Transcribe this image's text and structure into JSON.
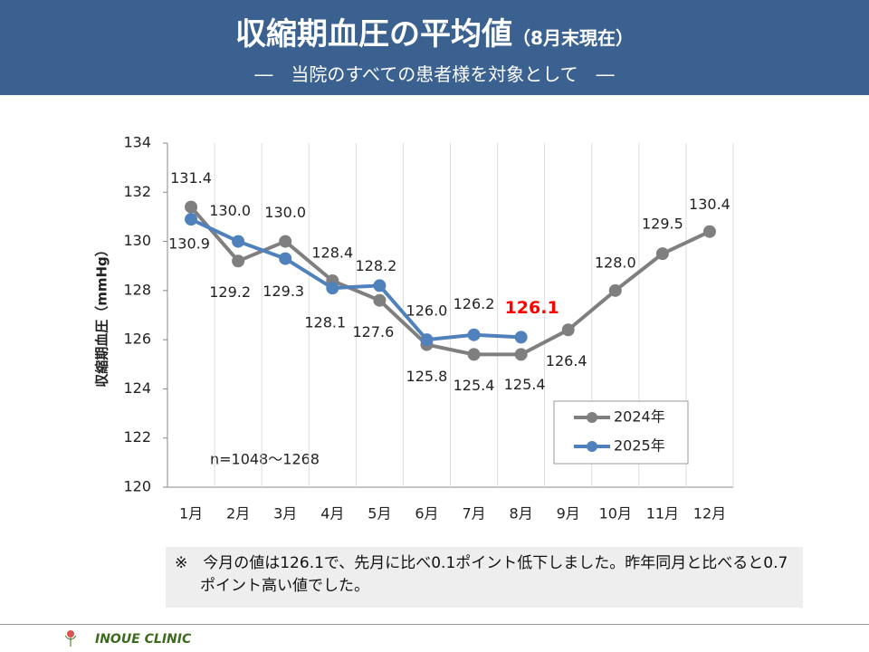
{
  "header": {
    "title": "収縮期血圧の平均値",
    "title_suffix": "（8月末現在）",
    "subtitle": "―　当院のすべての患者様を対象として　―"
  },
  "chart_data": {
    "type": "line",
    "ylabel": "収縮期血圧（mmHg）",
    "annotation": "n=1048～1268",
    "categories": [
      "1月",
      "2月",
      "3月",
      "4月",
      "5月",
      "6月",
      "7月",
      "8月",
      "9月",
      "10月",
      "11月",
      "12月"
    ],
    "series": [
      {
        "name": "2024年",
        "color": "#7f7f7f",
        "values": [
          131.4,
          129.2,
          130.0,
          128.4,
          127.6,
          125.8,
          125.4,
          125.4,
          126.4,
          128.0,
          129.5,
          130.4
        ],
        "value_labels": [
          "131.4",
          "129.2",
          "130.0",
          "128.4",
          "127.6",
          "125.8",
          "125.4",
          "125.4",
          "126.4",
          "128.0",
          "129.5",
          "130.4"
        ]
      },
      {
        "name": "2025年",
        "color": "#4f81bd",
        "values": [
          130.9,
          130.0,
          129.3,
          128.1,
          128.2,
          126.0,
          126.2,
          126.1,
          null,
          null,
          null,
          null
        ],
        "value_labels": [
          "130.9",
          "130.0",
          "129.3",
          "128.1",
          "128.2",
          "126.0",
          "126.2",
          "126.1",
          null,
          null,
          null,
          null
        ]
      }
    ],
    "ylim": [
      120,
      134
    ],
    "yticks": [
      120,
      122,
      124,
      126,
      128,
      130,
      132,
      134
    ],
    "grid": false,
    "legend": "lower right"
  },
  "note": "※　今月の値は126.1で、先月に比べ0.1ポイント低下しました。昨年同月と比べると0.7ポイント高い値でした。",
  "footer": "INOUE CLINIC"
}
